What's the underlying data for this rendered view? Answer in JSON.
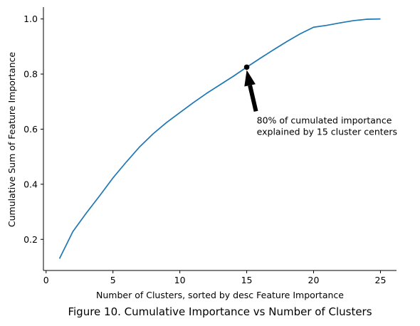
{
  "caption": "Figure 10. Cumulative Importance vs Number of Clusters",
  "chart_data": {
    "type": "line",
    "xlabel": "Number of Clusters, sorted by desc Feature Importance",
    "ylabel": "Cumulative Sum of Feature Importance",
    "xlim": [
      -0.2,
      26.2
    ],
    "ylim": [
      0.087,
      1.043
    ],
    "x_ticks": [
      0,
      5,
      10,
      15,
      20,
      25
    ],
    "x_tick_labels": [
      "0",
      "5",
      "10",
      "15",
      "20",
      "25"
    ],
    "y_ticks": [
      0.2,
      0.4,
      0.6,
      0.8,
      1.0
    ],
    "y_tick_labels": [
      "0.2",
      "0.4",
      "0.6",
      "0.8",
      "1.0"
    ],
    "grid": false,
    "series_color": "#1f77b4",
    "series": [
      {
        "x": [
          1,
          2,
          3,
          4,
          5,
          6,
          7,
          8,
          9,
          10,
          11,
          12,
          13,
          14,
          15,
          16,
          17,
          18,
          19,
          20,
          21,
          22,
          23,
          24,
          25
        ],
        "values": [
          0.13,
          0.228,
          0.295,
          0.358,
          0.423,
          0.481,
          0.536,
          0.583,
          0.624,
          0.66,
          0.696,
          0.73,
          0.761,
          0.792,
          0.825,
          0.857,
          0.888,
          0.918,
          0.946,
          0.97,
          0.977,
          0.986,
          0.994,
          0.999,
          1.0
        ]
      }
    ],
    "annotation": {
      "point": [
        15,
        0.825
      ],
      "text_anchor": [
        15.75,
        0.59
      ],
      "lines": [
        "80% of cumulated importance",
        "explained by 15 cluster centers"
      ]
    }
  }
}
